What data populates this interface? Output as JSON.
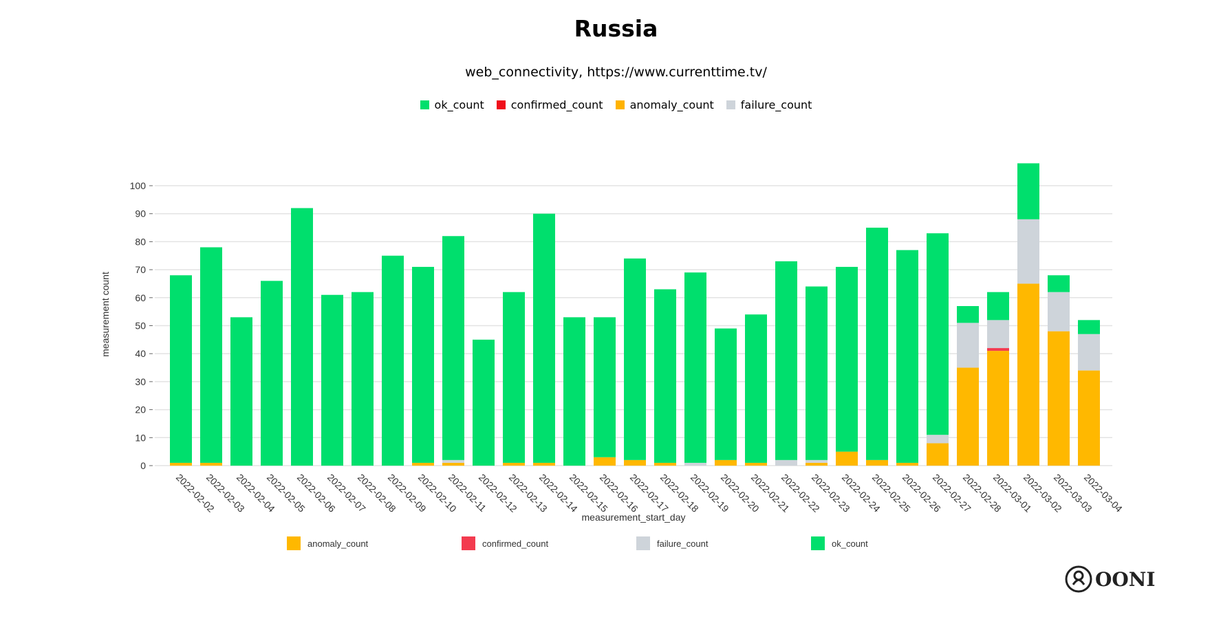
{
  "title": "Russia",
  "subtitle": "web_connectivity, https://www.currenttime.tv/",
  "top_legend": [
    {
      "label": "ok_count",
      "color": "#00DF6D"
    },
    {
      "label": "confirmed_count",
      "color": "#F00E1B"
    },
    {
      "label": "anomaly_count",
      "color": "#FFB300"
    },
    {
      "label": "failure_count",
      "color": "#CED4DA"
    }
  ],
  "logo": "OONI",
  "chart_data": {
    "type": "bar",
    "stacked": true,
    "xlabel": "measurement_start_day",
    "ylabel": "measurement count",
    "ylim": [
      0,
      108
    ],
    "yticks": [
      0,
      10,
      20,
      30,
      40,
      50,
      60,
      70,
      80,
      90,
      100
    ],
    "grid": true,
    "legend_position": "bottom",
    "categories": [
      "2022-02-02",
      "2022-02-03",
      "2022-02-04",
      "2022-02-05",
      "2022-02-06",
      "2022-02-07",
      "2022-02-08",
      "2022-02-09",
      "2022-02-10",
      "2022-02-11",
      "2022-02-12",
      "2022-02-13",
      "2022-02-14",
      "2022-02-15",
      "2022-02-16",
      "2022-02-17",
      "2022-02-18",
      "2022-02-19",
      "2022-02-20",
      "2022-02-21",
      "2022-02-22",
      "2022-02-23",
      "2022-02-24",
      "2022-02-25",
      "2022-02-26",
      "2022-02-27",
      "2022-02-28",
      "2022-03-01",
      "2022-03-02",
      "2022-03-03",
      "2022-03-04"
    ],
    "series": [
      {
        "name": "anomaly_count",
        "color": "#FFB800",
        "values": [
          1,
          1,
          0,
          0,
          0,
          0,
          0,
          0,
          1,
          1,
          0,
          1,
          1,
          0,
          3,
          2,
          1,
          0,
          2,
          1,
          0,
          1,
          5,
          2,
          1,
          8,
          35,
          41,
          65,
          48,
          34
        ]
      },
      {
        "name": "confirmed_count",
        "color": "#F33B4F",
        "values": [
          0,
          0,
          0,
          0,
          0,
          0,
          0,
          0,
          0,
          0,
          0,
          0,
          0,
          0,
          0,
          0,
          0,
          0,
          0,
          0,
          0,
          0,
          0,
          0,
          0,
          0,
          0,
          1,
          0,
          0,
          0
        ]
      },
      {
        "name": "failure_count",
        "color": "#CED4DA",
        "values": [
          0,
          0,
          0,
          0,
          0,
          0,
          0,
          0,
          0,
          1,
          0,
          0,
          0,
          0,
          0,
          0,
          0,
          1,
          0,
          0,
          2,
          1,
          0,
          0,
          0,
          3,
          16,
          10,
          23,
          14,
          13
        ]
      },
      {
        "name": "ok_count",
        "color": "#00DF6D",
        "values": [
          67,
          77,
          53,
          66,
          92,
          61,
          62,
          75,
          70,
          80,
          45,
          61,
          89,
          53,
          50,
          72,
          62,
          68,
          47,
          53,
          71,
          62,
          66,
          83,
          76,
          72,
          6,
          10,
          20,
          6,
          5
        ]
      }
    ]
  }
}
